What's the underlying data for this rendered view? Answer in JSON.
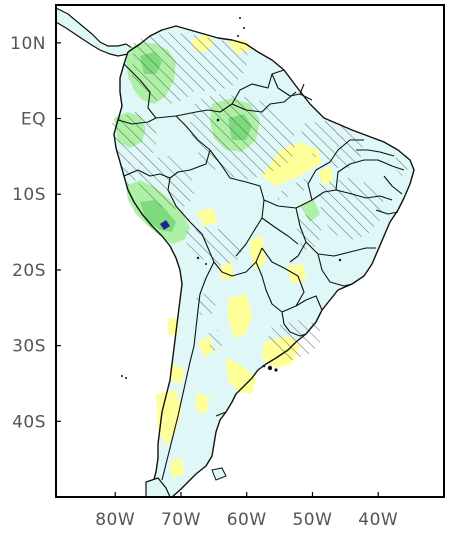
{
  "map": {
    "lat_ticks": [
      {
        "label": "10N",
        "lat": 10
      },
      {
        "label": "EQ",
        "lat": 0
      },
      {
        "label": "10S",
        "lat": -10
      },
      {
        "label": "20S",
        "lat": -20
      },
      {
        "label": "30S",
        "lat": -30
      },
      {
        "label": "40S",
        "lat": -40
      }
    ],
    "lon_ticks": [
      {
        "label": "80W",
        "lon": -80
      },
      {
        "label": "70W",
        "lon": -70
      },
      {
        "label": "60W",
        "lon": -60
      },
      {
        "label": "50W",
        "lon": -50
      },
      {
        "label": "40W",
        "lon": -40
      }
    ],
    "extent": {
      "lon_min": -89,
      "lon_max": -30,
      "lat_min": -50,
      "lat_max": 15
    },
    "colors": {
      "light_cyan": "#dff7f7",
      "yellow": "#ffff99",
      "light_green": "#aef0a6",
      "green": "#7ddb7d",
      "dark_blue": "#1a2a8c",
      "hatch": "#444444"
    }
  }
}
